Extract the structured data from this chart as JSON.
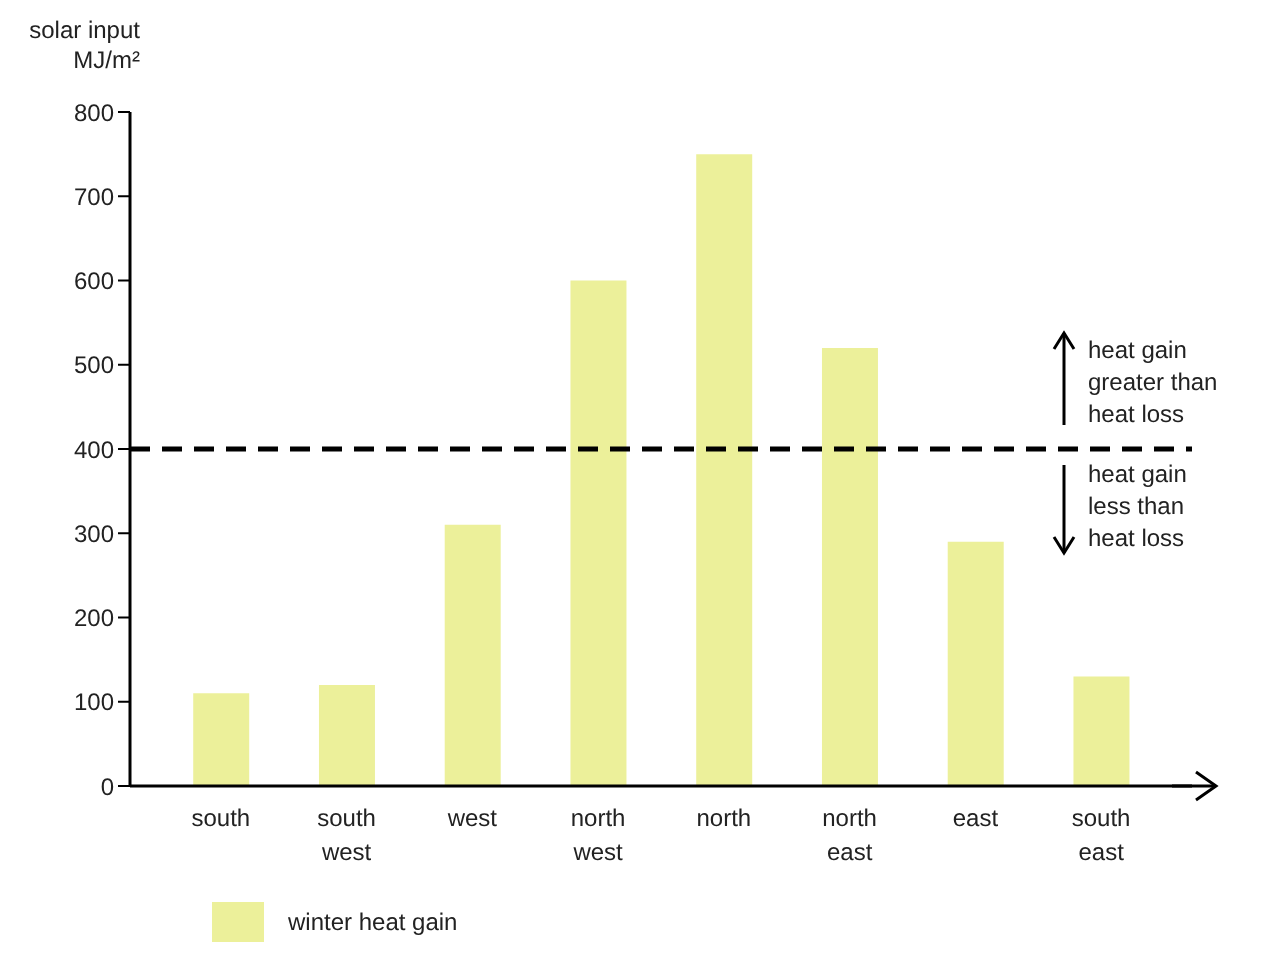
{
  "chart_data": {
    "type": "bar",
    "ylabel": "solar input MJ/m²",
    "categories": [
      "south",
      "south west",
      "west",
      "north west",
      "north",
      "north east",
      "east",
      "south east"
    ],
    "series": [
      {
        "name": "winter heat gain",
        "color": "#ecf09a",
        "values": [
          110,
          120,
          310,
          600,
          750,
          520,
          290,
          130
        ]
      }
    ],
    "ylim": [
      0,
      800
    ],
    "yticks": [
      0,
      100,
      200,
      300,
      400,
      500,
      600,
      700,
      800
    ],
    "ref_lines": [
      {
        "axis": "y",
        "value": 400,
        "color": "#000000",
        "line_style": "dashed"
      }
    ],
    "annotations": [
      {
        "text": "heat gain greater than heat loss",
        "y": 400
      },
      {
        "text": "heat gain less than heat loss",
        "y": 400
      }
    ],
    "grid": false,
    "legend": "bottom left"
  }
}
